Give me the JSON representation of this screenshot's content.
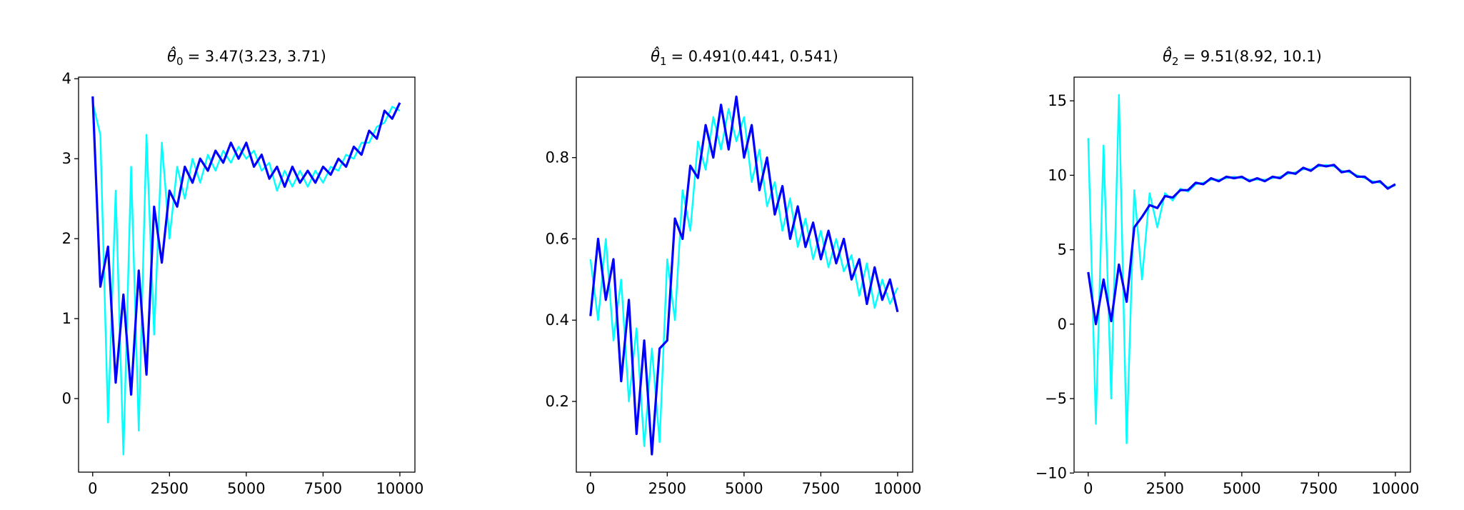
{
  "chart_data": [
    {
      "type": "line",
      "title_symbol": "θ̂",
      "title_subscript": "0",
      "title_value": "= 3.47(3.23, 3.71)",
      "x": [
        0,
        250,
        500,
        750,
        1000,
        1250,
        1500,
        1750,
        2000,
        2250,
        2500,
        2750,
        3000,
        3250,
        3500,
        3750,
        4000,
        4250,
        4500,
        4750,
        5000,
        5250,
        5500,
        5750,
        6000,
        6250,
        6500,
        6750,
        7000,
        7250,
        7500,
        7750,
        8000,
        8250,
        8500,
        8750,
        9000,
        9250,
        9500,
        9750,
        10000
      ],
      "series": [
        {
          "color": "#00ffff",
          "values": [
            3.7,
            3.3,
            -0.3,
            2.6,
            -0.7,
            2.9,
            -0.4,
            3.3,
            0.8,
            3.2,
            2.0,
            2.9,
            2.5,
            3.0,
            2.7,
            3.05,
            2.85,
            3.1,
            2.95,
            3.15,
            3.0,
            3.1,
            2.85,
            2.95,
            2.6,
            2.85,
            2.65,
            2.85,
            2.65,
            2.85,
            2.7,
            2.9,
            2.85,
            3.05,
            3.0,
            3.2,
            3.2,
            3.4,
            3.45,
            3.65,
            3.6
          ]
        },
        {
          "color": "#0000ff",
          "values": [
            3.78,
            1.4,
            1.9,
            0.2,
            1.3,
            0.05,
            1.6,
            0.3,
            2.4,
            1.7,
            2.6,
            2.4,
            2.9,
            2.7,
            3.0,
            2.85,
            3.1,
            2.95,
            3.2,
            3.0,
            3.2,
            2.9,
            3.05,
            2.75,
            2.9,
            2.65,
            2.9,
            2.7,
            2.85,
            2.7,
            2.9,
            2.8,
            3.0,
            2.9,
            3.15,
            3.05,
            3.35,
            3.25,
            3.6,
            3.5,
            3.7
          ]
        }
      ],
      "xlim": [
        -460,
        10490
      ],
      "ylim": [
        -0.92,
        4.02
      ],
      "xticks": [
        0,
        2500,
        5000,
        7500,
        10000
      ],
      "yticks": [
        0,
        1,
        2,
        3,
        4
      ]
    },
    {
      "type": "line",
      "title_symbol": "θ̂",
      "title_subscript": "1",
      "title_value": "= 0.491(0.441, 0.541)",
      "x": [
        0,
        250,
        500,
        750,
        1000,
        1250,
        1500,
        1750,
        2000,
        2250,
        2500,
        2750,
        3000,
        3250,
        3500,
        3750,
        4000,
        4250,
        4500,
        4750,
        5000,
        5250,
        5500,
        5750,
        6000,
        6250,
        6500,
        6750,
        7000,
        7250,
        7500,
        7750,
        8000,
        8250,
        8500,
        8750,
        9000,
        9250,
        9500,
        9750,
        10000
      ],
      "series": [
        {
          "color": "#00ffff",
          "values": [
            0.55,
            0.4,
            0.6,
            0.35,
            0.5,
            0.2,
            0.38,
            0.09,
            0.33,
            0.1,
            0.55,
            0.4,
            0.72,
            0.62,
            0.84,
            0.77,
            0.9,
            0.82,
            0.92,
            0.84,
            0.9,
            0.74,
            0.82,
            0.68,
            0.74,
            0.62,
            0.7,
            0.58,
            0.65,
            0.55,
            0.62,
            0.53,
            0.6,
            0.52,
            0.56,
            0.46,
            0.54,
            0.43,
            0.5,
            0.44,
            0.48
          ]
        },
        {
          "color": "#0000ff",
          "values": [
            0.41,
            0.6,
            0.45,
            0.55,
            0.25,
            0.45,
            0.12,
            0.35,
            0.07,
            0.33,
            0.35,
            0.65,
            0.6,
            0.78,
            0.75,
            0.88,
            0.8,
            0.93,
            0.82,
            0.95,
            0.8,
            0.88,
            0.72,
            0.8,
            0.66,
            0.73,
            0.6,
            0.68,
            0.58,
            0.64,
            0.55,
            0.62,
            0.54,
            0.6,
            0.5,
            0.55,
            0.44,
            0.53,
            0.45,
            0.5,
            0.42
          ]
        }
      ],
      "xlim": [
        -460,
        10490
      ],
      "ylim": [
        0.026,
        0.998
      ],
      "xticks": [
        0,
        2500,
        5000,
        7500,
        10000
      ],
      "yticks": [
        0.2,
        0.4,
        0.6,
        0.8
      ]
    },
    {
      "type": "line",
      "title_symbol": "θ̂",
      "title_subscript": "2",
      "title_value": "= 9.51(8.92, 10.1)",
      "x": [
        0,
        250,
        500,
        750,
        1000,
        1250,
        1500,
        1750,
        2000,
        2250,
        2500,
        2750,
        3000,
        3250,
        3500,
        3750,
        4000,
        4250,
        4500,
        4750,
        5000,
        5250,
        5500,
        5750,
        6000,
        6250,
        6500,
        6750,
        7000,
        7250,
        7500,
        7750,
        8000,
        8250,
        8500,
        8750,
        9000,
        9250,
        9500,
        9750,
        10000
      ],
      "series": [
        {
          "color": "#00ffff",
          "values": [
            12.5,
            -6.7,
            12,
            -5,
            15.4,
            -8,
            9,
            3,
            8.8,
            6.5,
            8.8,
            8.3,
            9.1,
            8.9,
            9.4,
            9.5,
            9.7,
            9.7,
            9.8,
            9.9,
            9.8,
            9.7,
            9.7,
            9.7,
            9.8,
            9.9,
            10.1,
            10.2,
            10.4,
            10.4,
            10.6,
            10.7,
            10.6,
            10.3,
            10.2,
            10.0,
            9.8,
            9.6,
            9.5,
            9.2,
            9.3
          ]
        },
        {
          "color": "#0000ff",
          "values": [
            3.5,
            0.0,
            3.0,
            0.2,
            4.0,
            1.5,
            6.5,
            7.2,
            8.0,
            7.8,
            8.6,
            8.5,
            9.0,
            9.0,
            9.5,
            9.4,
            9.8,
            9.6,
            9.9,
            9.8,
            9.9,
            9.6,
            9.8,
            9.6,
            9.9,
            9.8,
            10.2,
            10.1,
            10.5,
            10.3,
            10.7,
            10.6,
            10.7,
            10.2,
            10.3,
            9.9,
            9.9,
            9.5,
            9.6,
            9.1,
            9.4
          ]
        }
      ],
      "xlim": [
        -460,
        10490
      ],
      "ylim": [
        -9.94,
        16.59
      ],
      "xticks": [
        0,
        2500,
        5000,
        7500,
        10000
      ],
      "yticks": [
        {
          "value": -10,
          "label": "−10"
        },
        {
          "value": -5,
          "label": "−5"
        },
        0,
        5,
        10,
        15
      ]
    }
  ]
}
